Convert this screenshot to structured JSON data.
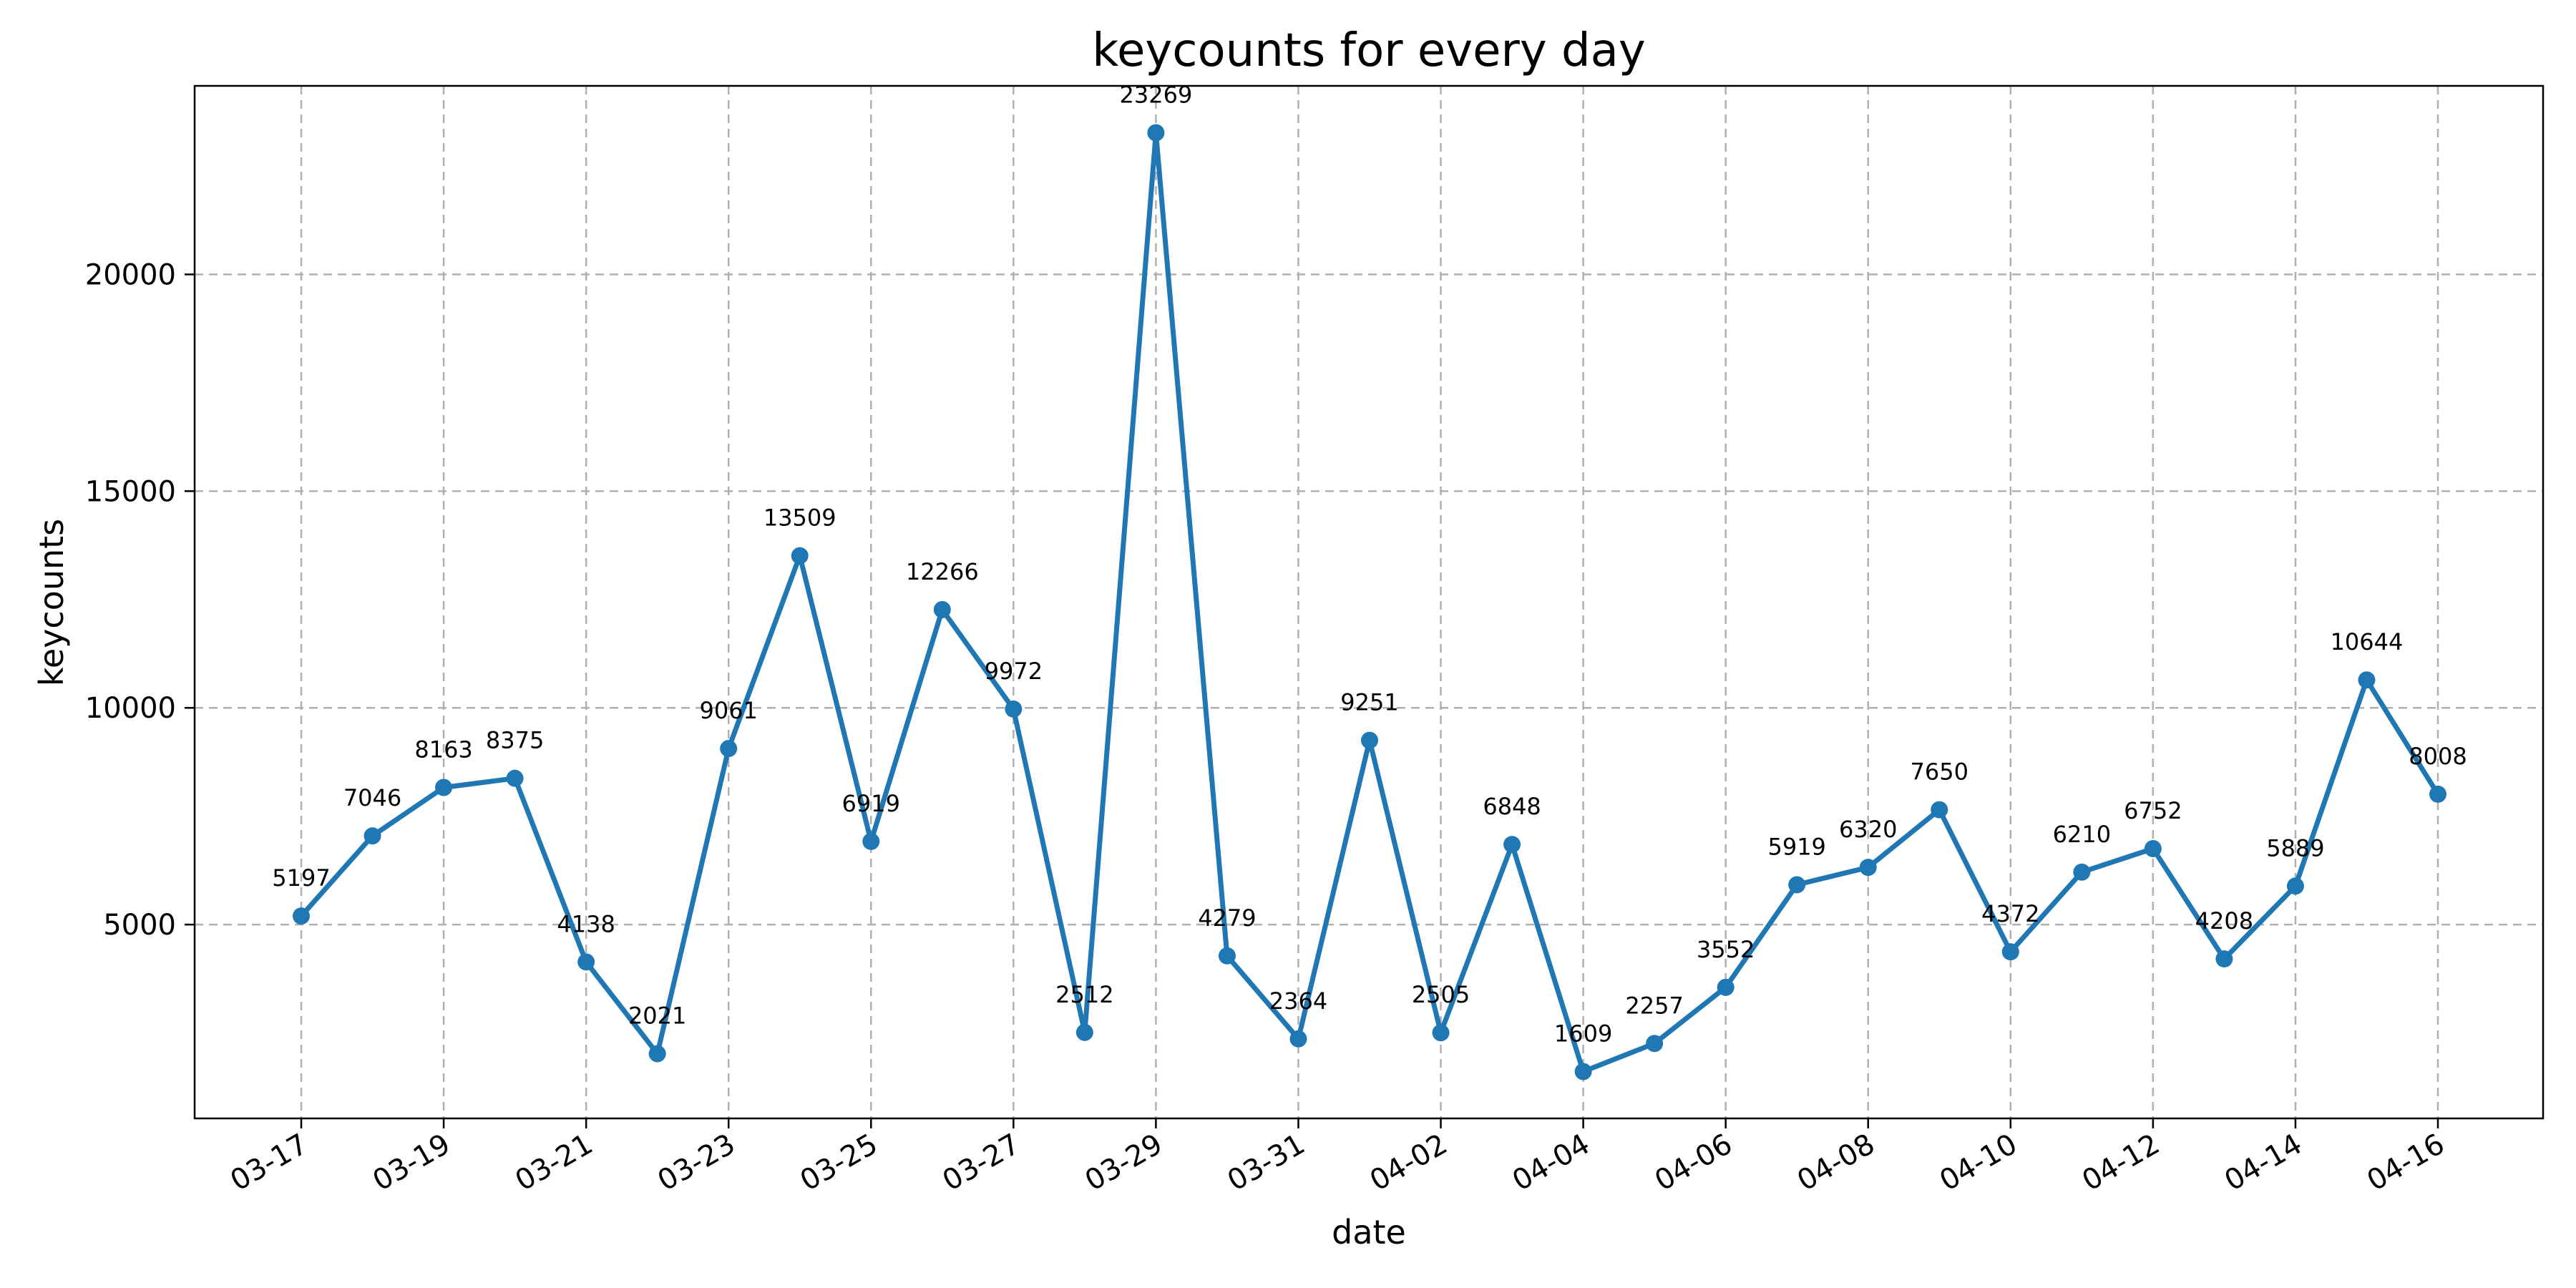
{
  "chart_data": {
    "type": "line",
    "title": "keycounts for every day",
    "xlabel": "date",
    "ylabel": "keycounts",
    "x": [
      "03-17",
      "03-18",
      "03-19",
      "03-20",
      "03-21",
      "03-22",
      "03-23",
      "03-24",
      "03-25",
      "03-26",
      "03-27",
      "03-28",
      "03-29",
      "03-30",
      "03-31",
      "04-01",
      "04-02",
      "04-03",
      "04-04",
      "04-05",
      "04-06",
      "04-07",
      "04-08",
      "04-09",
      "04-10",
      "04-11",
      "04-12",
      "04-13",
      "04-14",
      "04-15",
      "04-16"
    ],
    "values": [
      5197,
      7046,
      8163,
      8375,
      4138,
      2021,
      9061,
      13509,
      6919,
      12266,
      9972,
      2512,
      23269,
      4279,
      2364,
      9251,
      2505,
      6848,
      1609,
      2257,
      3552,
      5919,
      6320,
      7650,
      4372,
      6210,
      6752,
      4208,
      5889,
      10644,
      8008
    ],
    "data_labels": [
      "5197",
      "7046",
      "8163",
      "8375",
      "4138",
      "2021",
      "9061",
      "13509",
      "6919",
      "12266",
      "9972",
      "2512",
      "23269",
      "4279",
      "2364",
      "9251",
      "2505",
      "6848",
      "1609",
      "2257",
      "3552",
      "5919",
      "6320",
      "7650",
      "4372",
      "6210",
      "6752",
      "4208",
      "5889",
      "10644",
      "8008"
    ],
    "x_tick_labels": [
      "03-17",
      "03-19",
      "03-21",
      "03-23",
      "03-25",
      "03-27",
      "03-29",
      "03-31",
      "04-02",
      "04-04",
      "04-06",
      "04-08",
      "04-10",
      "04-12",
      "04-14",
      "04-16"
    ],
    "y_ticks": [
      5000,
      10000,
      15000,
      20000
    ],
    "y_tick_labels": [
      "5000",
      "10000",
      "15000",
      "20000"
    ],
    "ylim": [
      528,
      24350
    ],
    "grid": true,
    "series_color": "#1f77b4"
  }
}
